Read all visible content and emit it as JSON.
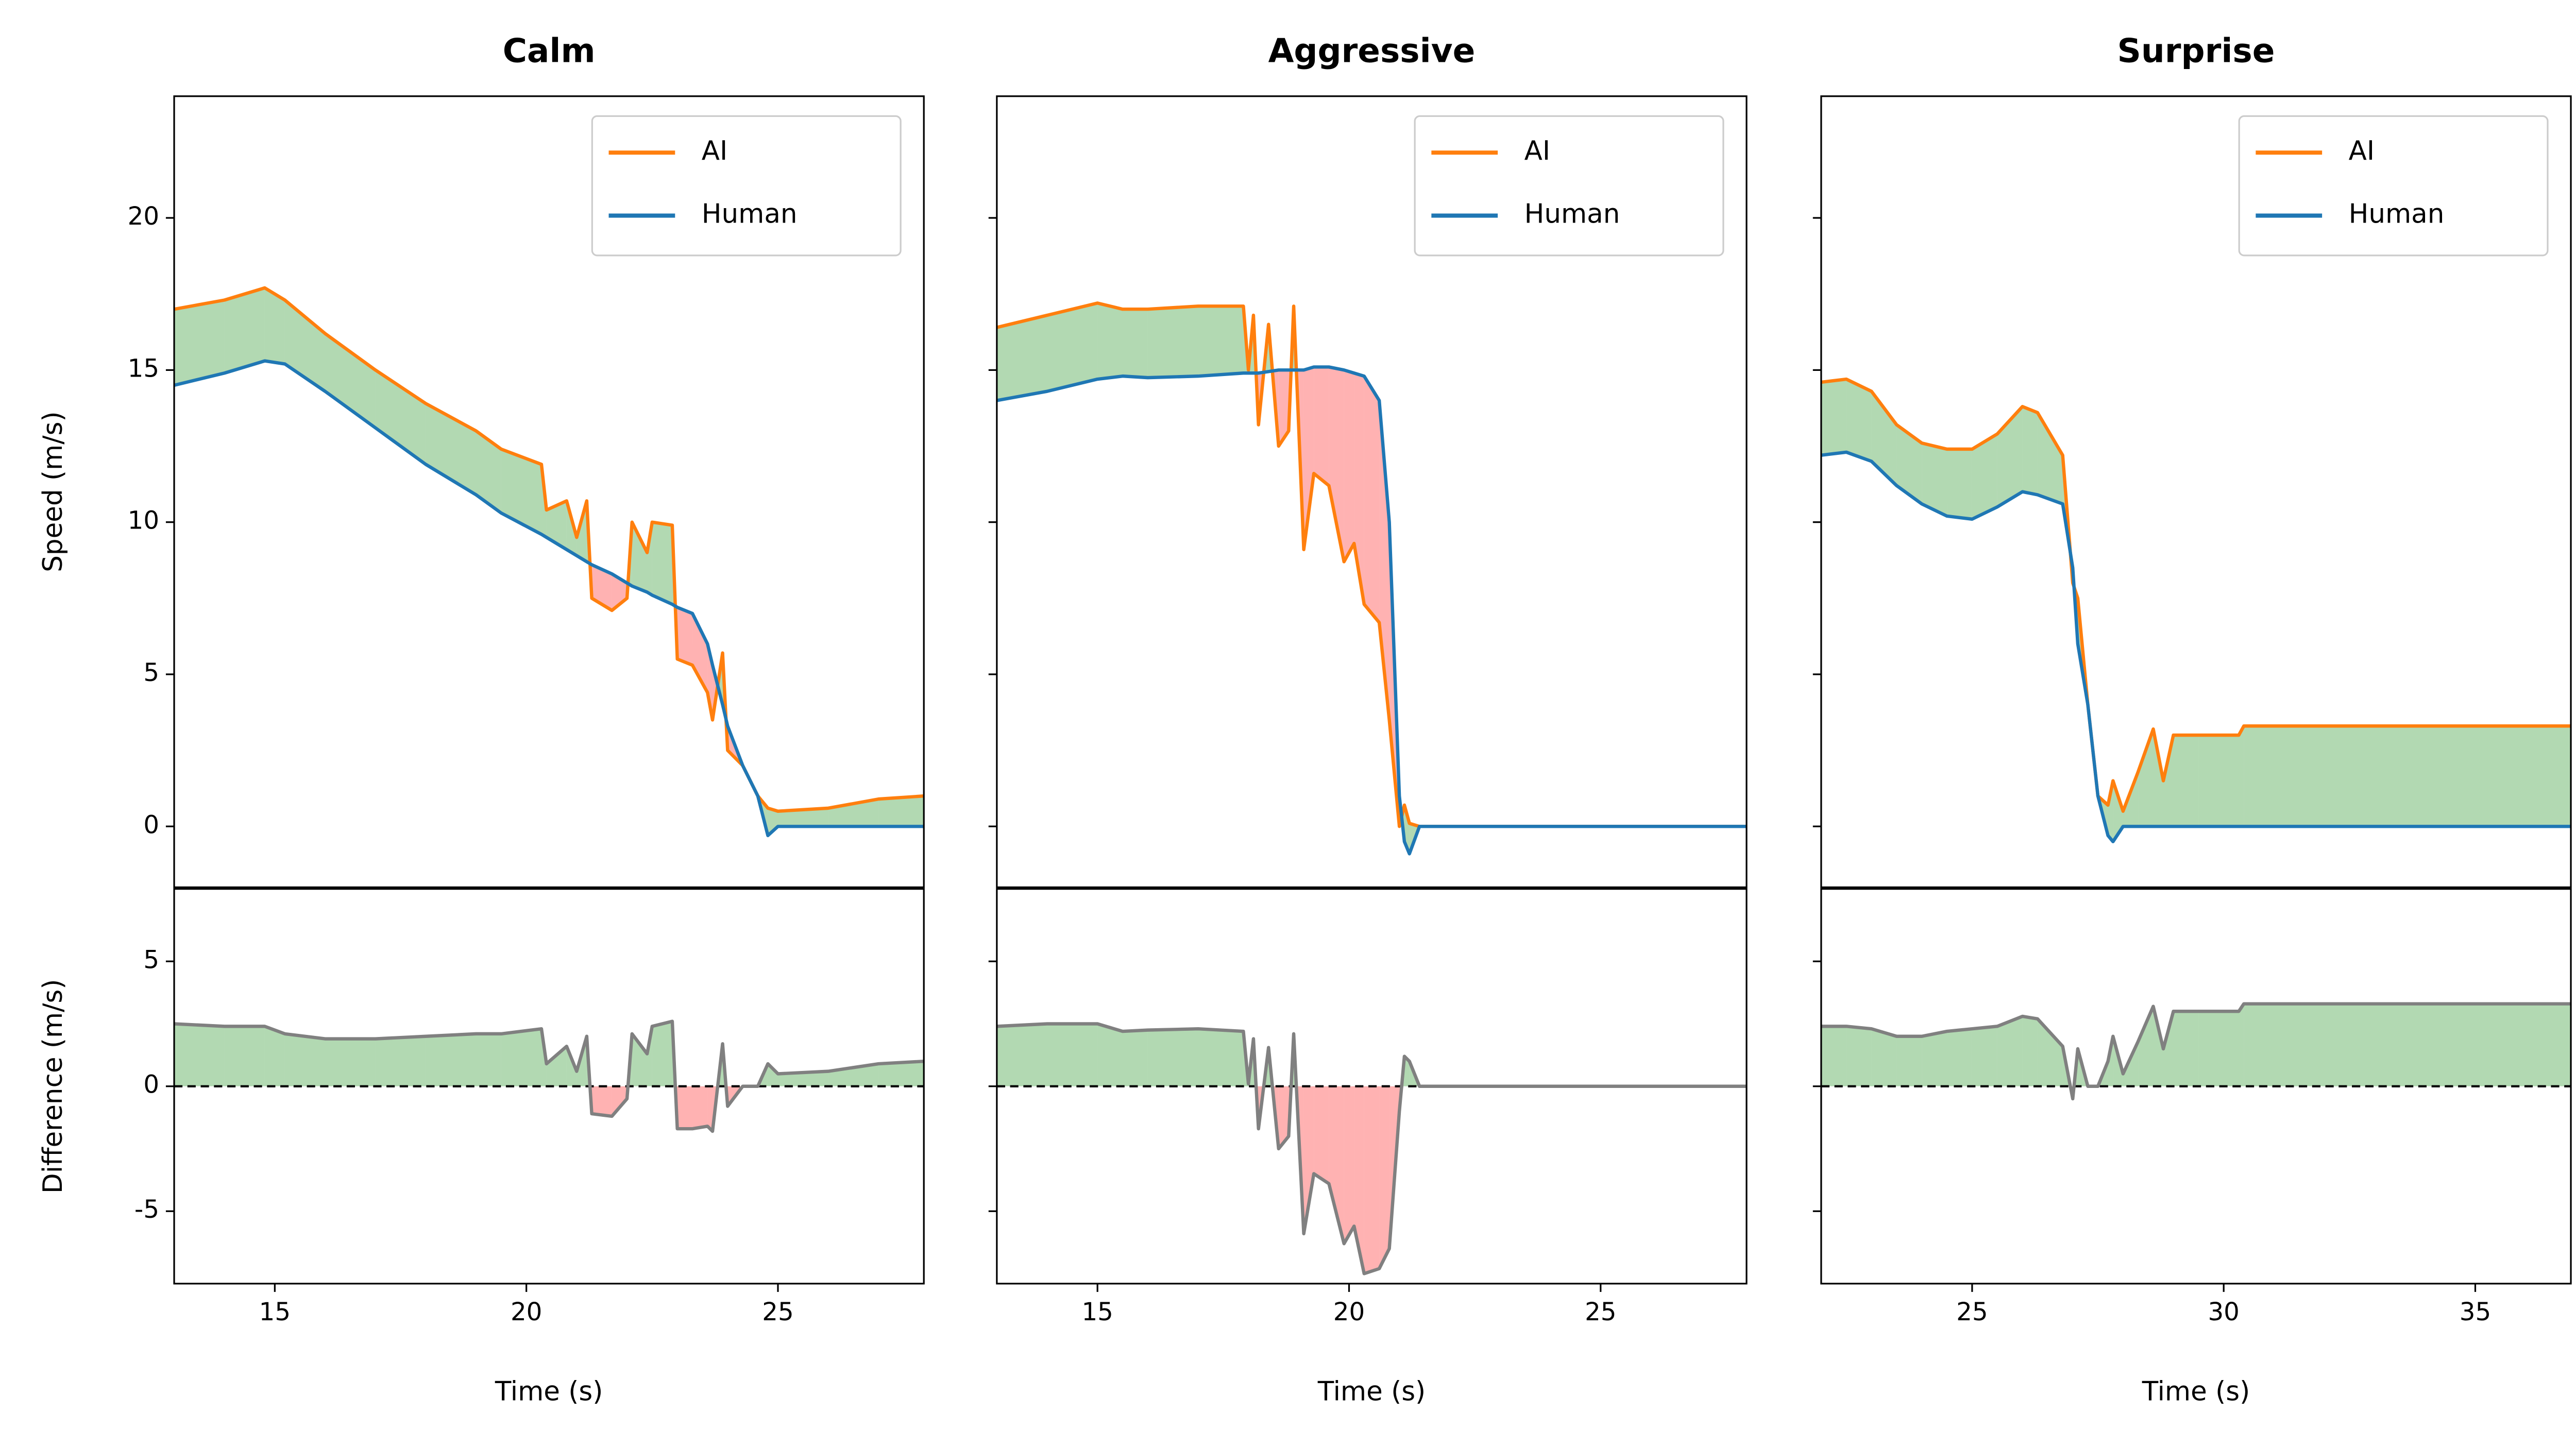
{
  "chart_data": [
    {
      "type": "line",
      "title": "Calm",
      "ylabel": "Speed (m/s)",
      "legend": "upper right",
      "fill_above": "green",
      "fill_below": "red",
      "fill_alpha": 0.3,
      "x": [
        13,
        14,
        14.8,
        15.2,
        16,
        17,
        18,
        19,
        19.5,
        20.3,
        20.4,
        20.8,
        21,
        21.2,
        21.3,
        21.7,
        22,
        22.1,
        22.4,
        22.5,
        22.9,
        23,
        23.3,
        23.6,
        23.7,
        23.9,
        24,
        24.3,
        24.6,
        24.8,
        25,
        26,
        27,
        27.9
      ],
      "xlim": [
        13,
        27.9
      ],
      "ylim": [
        -2,
        24
      ],
      "yticks": [
        0,
        5,
        10,
        15,
        20
      ],
      "ytick_labels": true,
      "series": [
        {
          "name": "AI",
          "color": "#ff7f0e",
          "values": [
            17,
            17.3,
            17.7,
            17.3,
            16.2,
            15,
            13.9,
            13,
            12.4,
            11.9,
            10.4,
            10.7,
            9.5,
            10.7,
            7.5,
            7.1,
            7.5,
            10,
            9,
            10,
            9.9,
            5.5,
            5.3,
            4.4,
            3.5,
            5.7,
            2.5,
            2,
            1,
            0.6,
            0.5,
            0.6,
            0.9,
            1
          ]
        },
        {
          "name": "Human",
          "color": "#1f77b4",
          "values": [
            14.5,
            14.9,
            15.3,
            15.2,
            14.3,
            13.1,
            11.9,
            10.9,
            10.3,
            9.6,
            9.5,
            9.1,
            8.9,
            8.7,
            8.6,
            8.3,
            8,
            7.9,
            7.7,
            7.6,
            7.3,
            7.2,
            7,
            6,
            5.3,
            4,
            3.3,
            2,
            1,
            -0.3,
            0,
            0,
            0,
            0
          ]
        }
      ]
    },
    {
      "type": "line",
      "title": "Aggressive",
      "legend": "upper right",
      "fill_above": "green",
      "fill_below": "red",
      "fill_alpha": 0.3,
      "x": [
        13,
        14,
        15,
        15.5,
        16,
        17,
        17.9,
        18,
        18.1,
        18.2,
        18.4,
        18.6,
        18.8,
        18.9,
        19.1,
        19.3,
        19.6,
        19.9,
        20.1,
        20.3,
        20.6,
        20.8,
        21,
        21.1,
        21.2,
        21.4,
        22,
        27.9
      ],
      "xlim": [
        13,
        27.9
      ],
      "ylim": [
        -2,
        24
      ],
      "yticks": [
        0,
        5,
        10,
        15,
        20
      ],
      "ytick_labels": false,
      "series": [
        {
          "name": "AI",
          "color": "#ff7f0e",
          "values": [
            16.4,
            16.8,
            17.2,
            17,
            17,
            17.1,
            17.1,
            15,
            16.8,
            13.2,
            16.5,
            12.5,
            13,
            17.1,
            9.1,
            11.6,
            11.2,
            8.7,
            9.3,
            7.3,
            6.7,
            3.5,
            0,
            0.7,
            0.1,
            0,
            0,
            0
          ]
        },
        {
          "name": "Human",
          "color": "#1f77b4",
          "values": [
            14,
            14.3,
            14.7,
            14.8,
            14.75,
            14.8,
            14.9,
            14.9,
            14.9,
            14.9,
            14.95,
            15,
            15,
            15,
            15,
            15.1,
            15.1,
            15,
            14.9,
            14.8,
            14,
            10,
            1,
            -0.5,
            -0.9,
            0,
            0,
            0
          ]
        }
      ]
    },
    {
      "type": "line",
      "title": "Surprise",
      "legend": "upper right",
      "fill_above": "green",
      "fill_below": "red",
      "fill_alpha": 0.3,
      "x": [
        22,
        22.5,
        23,
        23.5,
        24,
        24.5,
        25,
        25.5,
        26,
        26.3,
        26.8,
        27,
        27.1,
        27.3,
        27.5,
        27.7,
        27.8,
        28,
        28.3,
        28.6,
        28.8,
        29,
        29.5,
        30.3,
        30.4,
        36.9
      ],
      "xlim": [
        22,
        36.9
      ],
      "ylim": [
        -2,
        24
      ],
      "yticks": [
        0,
        5,
        10,
        15,
        20
      ],
      "ytick_labels": false,
      "series": [
        {
          "name": "AI",
          "color": "#ff7f0e",
          "values": [
            14.6,
            14.7,
            14.3,
            13.2,
            12.6,
            12.4,
            12.4,
            12.9,
            13.8,
            13.6,
            12.2,
            8,
            7.5,
            4,
            1,
            0.7,
            1.5,
            0.5,
            1.8,
            3.2,
            1.5,
            3,
            3,
            3,
            3.3,
            3.3
          ]
        },
        {
          "name": "Human",
          "color": "#1f77b4",
          "values": [
            12.2,
            12.3,
            12,
            11.2,
            10.6,
            10.2,
            10.1,
            10.5,
            11,
            10.9,
            10.6,
            8.5,
            6,
            4,
            1,
            -0.3,
            -0.5,
            0,
            0,
            0,
            0,
            0,
            0,
            0,
            0,
            0
          ]
        }
      ]
    },
    {
      "type": "line",
      "xlabel": "Time (s)",
      "ylabel": "Difference (m/s)",
      "color": "#808080",
      "zero_line": true,
      "fill_above": "green",
      "fill_below": "red",
      "fill_alpha": 0.3,
      "x": [
        13,
        14,
        14.8,
        15.2,
        16,
        17,
        18,
        19,
        19.5,
        20.3,
        20.4,
        20.8,
        21,
        21.2,
        21.3,
        21.7,
        22,
        22.1,
        22.4,
        22.5,
        22.9,
        23,
        23.3,
        23.6,
        23.7,
        23.9,
        24,
        24.3,
        24.6,
        24.8,
        25,
        26,
        27,
        27.9
      ],
      "values": [
        2.5,
        2.4,
        2.4,
        2.1,
        1.9,
        1.9,
        2,
        2.1,
        2.1,
        2.3,
        0.9,
        1.6,
        0.6,
        2,
        -1.1,
        -1.2,
        -0.5,
        2.1,
        1.3,
        2.4,
        2.6,
        -1.7,
        -1.7,
        -1.6,
        -1.8,
        1.7,
        -0.8,
        0,
        0,
        0.9,
        0.5,
        0.6,
        0.9,
        1
      ],
      "xlim": [
        13,
        27.9
      ],
      "xticks": [
        15,
        20,
        25
      ],
      "ylim": [
        -7.9,
        7.9
      ],
      "yticks": [
        -5,
        0,
        5
      ],
      "ytick_labels": true
    },
    {
      "type": "line",
      "xlabel": "Time (s)",
      "color": "#808080",
      "zero_line": true,
      "fill_above": "green",
      "fill_below": "red",
      "fill_alpha": 0.3,
      "x": [
        13,
        14,
        15,
        15.5,
        16,
        17,
        17.9,
        18,
        18.1,
        18.2,
        18.4,
        18.6,
        18.8,
        18.9,
        19.1,
        19.3,
        19.6,
        19.9,
        20.1,
        20.3,
        20.6,
        20.8,
        21,
        21.1,
        21.2,
        21.4,
        22,
        27.9
      ],
      "values": [
        2.4,
        2.5,
        2.5,
        2.2,
        2.25,
        2.3,
        2.2,
        0.1,
        1.9,
        -1.7,
        1.55,
        -2.5,
        -2,
        2.1,
        -5.9,
        -3.5,
        -3.9,
        -6.3,
        -5.6,
        -7.5,
        -7.3,
        -6.5,
        -1,
        1.2,
        1,
        0,
        0,
        0
      ],
      "xlim": [
        13,
        27.9
      ],
      "xticks": [
        15,
        20,
        25
      ],
      "ylim": [
        -7.9,
        7.9
      ],
      "yticks": [
        -5,
        0,
        5
      ],
      "ytick_labels": false
    },
    {
      "type": "line",
      "xlabel": "Time (s)",
      "color": "#808080",
      "zero_line": true,
      "fill_above": "green",
      "fill_below": "red",
      "fill_alpha": 0.3,
      "x": [
        22,
        22.5,
        23,
        23.5,
        24,
        24.5,
        25,
        25.5,
        26,
        26.3,
        26.8,
        27,
        27.1,
        27.3,
        27.5,
        27.7,
        27.8,
        28,
        28.3,
        28.6,
        28.8,
        29,
        29.5,
        30.3,
        30.4,
        36.9
      ],
      "values": [
        2.4,
        2.4,
        2.3,
        2,
        2,
        2.2,
        2.3,
        2.4,
        2.8,
        2.7,
        1.6,
        -0.5,
        1.5,
        0,
        0,
        1,
        2,
        0.5,
        1.8,
        3.2,
        1.5,
        3,
        3,
        3,
        3.3,
        3.3
      ],
      "xlim": [
        22,
        36.9
      ],
      "xticks": [
        25,
        30,
        35
      ],
      "ylim": [
        -7.9,
        7.9
      ],
      "yticks": [
        -5,
        0,
        5
      ],
      "ytick_labels": false
    }
  ]
}
